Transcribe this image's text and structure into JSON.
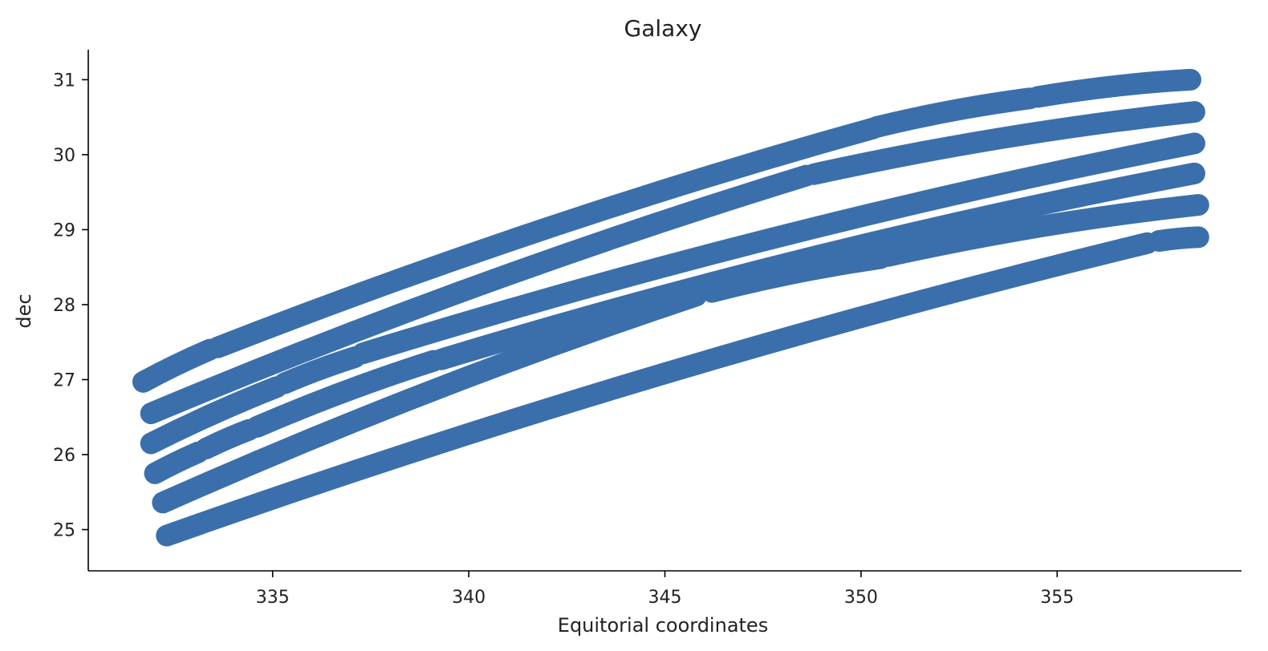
{
  "chart_data": {
    "type": "scatter",
    "title": "Galaxy",
    "xlabel": "Equitorial coordinates",
    "ylabel": "dec",
    "xlim": [
      330.3,
      359.7
    ],
    "ylim": [
      24.45,
      31.4
    ],
    "xticks": [
      335,
      340,
      345,
      350,
      355
    ],
    "yticks": [
      25,
      26,
      27,
      28,
      29,
      30,
      31
    ],
    "grid": false,
    "legend": "none",
    "marker_color": "#3a6fac",
    "series": [
      {
        "values": [
          {
            "start": [
              331.7,
              26.97
            ],
            "end": [
              333.4,
              27.4
            ]
          },
          {
            "start": [
              333.6,
              27.43
            ],
            "end": [
              350.3,
              30.35
            ]
          },
          {
            "start": [
              350.4,
              30.37
            ],
            "end": [
              354.3,
              30.75
            ]
          },
          {
            "start": [
              354.5,
              30.77
            ],
            "end": [
              358.4,
              31.0
            ]
          }
        ]
      },
      {
        "values": [
          {
            "start": [
              331.9,
              26.55
            ],
            "end": [
              348.6,
              29.72
            ]
          },
          {
            "start": [
              348.8,
              29.74
            ],
            "end": [
              358.5,
              30.57
            ]
          }
        ]
      },
      {
        "values": [
          {
            "start": [
              331.9,
              26.15
            ],
            "end": [
              335.1,
              26.9
            ]
          },
          {
            "start": [
              335.3,
              26.95
            ],
            "end": [
              337.1,
              27.3
            ]
          },
          {
            "start": [
              337.3,
              27.35
            ],
            "end": [
              358.5,
              30.15
            ]
          }
        ]
      },
      {
        "values": [
          {
            "start": [
              332.0,
              25.75
            ],
            "end": [
              333.1,
              26.03
            ]
          },
          {
            "start": [
              333.3,
              26.08
            ],
            "end": [
              334.4,
              26.33
            ]
          },
          {
            "start": [
              334.6,
              26.37
            ],
            "end": [
              339.1,
              27.25
            ]
          },
          {
            "start": [
              339.3,
              27.27
            ],
            "end": [
              358.5,
              29.75
            ]
          }
        ]
      },
      {
        "values": [
          {
            "start": [
              332.2,
              25.36
            ],
            "end": [
              345.8,
              28.12
            ]
          },
          {
            "start": [
              346.2,
              28.17
            ],
            "end": [
              350.5,
              28.62
            ]
          },
          {
            "start": [
              350.7,
              28.65
            ],
            "end": [
              358.6,
              29.33
            ]
          }
        ]
      },
      {
        "values": [
          {
            "start": [
              332.3,
              24.92
            ],
            "end": [
              357.3,
              28.82
            ]
          },
          {
            "start": [
              357.6,
              28.85
            ],
            "end": [
              358.6,
              28.9
            ]
          }
        ]
      }
    ]
  }
}
